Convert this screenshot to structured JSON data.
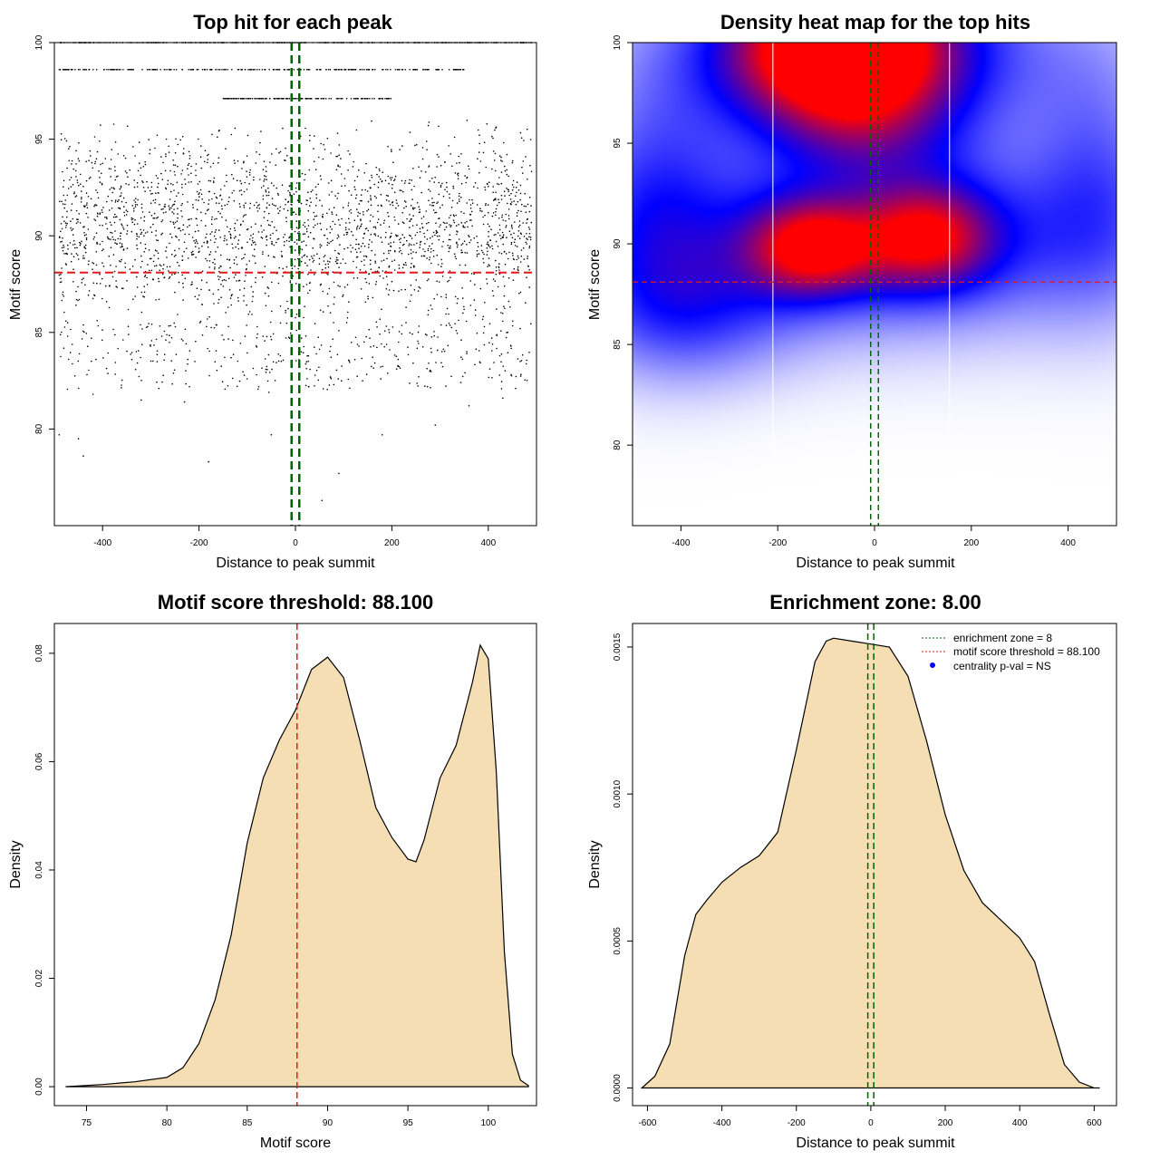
{
  "chart_data": [
    {
      "id": "scatter",
      "type": "scatter",
      "title": "Top hit for each peak",
      "xlabel": "Distance to peak summit",
      "ylabel": "Motif score",
      "xlim": [
        -500,
        500
      ],
      "ylim": [
        75,
        100
      ],
      "xticks": [
        "-400",
        "-200",
        "0",
        "200",
        "400"
      ],
      "xtick_values": [
        -400,
        -200,
        0,
        200,
        400
      ],
      "yticks": [
        "80",
        "85",
        "90",
        "95",
        "100"
      ],
      "ytick_values": [
        80,
        85,
        90,
        95,
        100
      ],
      "hline": 88.1,
      "vlines": [
        -8,
        8
      ],
      "discrete_rows": [
        {
          "y": 100,
          "x_range": [
            -490,
            490
          ]
        },
        {
          "y": 98.6,
          "x_range": [
            -490,
            350
          ]
        },
        {
          "y": 97.1,
          "x_range": [
            -150,
            200
          ]
        }
      ],
      "dense_band": [
        84,
        96
      ],
      "outliers": [
        {
          "x": -490,
          "y": 79.7
        },
        {
          "x": -450,
          "y": 79.5
        },
        {
          "x": -440,
          "y": 78.6
        },
        {
          "x": -420,
          "y": 81.8
        },
        {
          "x": -320,
          "y": 81.5
        },
        {
          "x": -230,
          "y": 81.4
        },
        {
          "x": -180,
          "y": 78.3
        },
        {
          "x": -55,
          "y": 81.9
        },
        {
          "x": -50,
          "y": 79.7
        },
        {
          "x": 90,
          "y": 77.7
        },
        {
          "x": 55,
          "y": 76.3
        },
        {
          "x": 180,
          "y": 79.7
        },
        {
          "x": 290,
          "y": 80.2
        },
        {
          "x": 360,
          "y": 81.2
        },
        {
          "x": 430,
          "y": 81.6
        }
      ],
      "colors": {
        "points": "#000000",
        "hline": "#e31a1c",
        "vlines": "#006400"
      }
    },
    {
      "id": "heatmap",
      "type": "heatmap",
      "title": "Density heat map for the top hits",
      "xlabel": "Distance to peak summit",
      "ylabel": "Motif score",
      "xlim": [
        -500,
        500
      ],
      "ylim": [
        76,
        100
      ],
      "xticks": [
        "-400",
        "-200",
        "0",
        "200",
        "400"
      ],
      "xtick_values": [
        -400,
        -200,
        0,
        200,
        400
      ],
      "yticks": [
        "80",
        "85",
        "90",
        "95",
        "100"
      ],
      "ytick_values": [
        80,
        85,
        90,
        95,
        100
      ],
      "hline": 88.1,
      "vlines": [
        -8,
        8
      ],
      "white_vlines": [
        -210,
        155
      ],
      "hotspots": [
        {
          "x": -70,
          "y": 99.7,
          "sx": 150,
          "sy": 2.6,
          "w": 1.5
        },
        {
          "x": -20,
          "y": 99.5,
          "sx": 300,
          "sy": 3.2,
          "w": 0.6
        },
        {
          "x": -130,
          "y": 89.8,
          "sx": 90,
          "sy": 1.6,
          "w": 0.95
        },
        {
          "x": 110,
          "y": 90.3,
          "sx": 95,
          "sy": 1.8,
          "w": 0.85
        },
        {
          "x": 0,
          "y": 90.2,
          "sx": 400,
          "sy": 3.3,
          "w": 0.62
        },
        {
          "x": -460,
          "y": 92.5,
          "sx": 110,
          "sy": 4.5,
          "w": 0.35
        },
        {
          "x": 460,
          "y": 93.5,
          "sx": 100,
          "sy": 4.5,
          "w": 0.3
        },
        {
          "x": -380,
          "y": 86.5,
          "sx": 150,
          "sy": 2.5,
          "w": 0.35
        },
        {
          "x": 0,
          "y": 95.5,
          "sx": 130,
          "sy": 2.0,
          "w": 0.3
        }
      ],
      "colors": {
        "low": "#ffffff",
        "mid": "#0000ff",
        "high": "#ff0000",
        "hline": "#e31a1c",
        "vlines": "#006400"
      }
    },
    {
      "id": "score-density",
      "type": "area",
      "title": "Motif score threshold: 88.100",
      "xlabel": "Motif score",
      "ylabel": "Density",
      "xlim": [
        73,
        103
      ],
      "ylim": [
        -0.0035,
        0.0855
      ],
      "xticks": [
        "75",
        "80",
        "85",
        "90",
        "95",
        "100"
      ],
      "xtick_values": [
        75,
        80,
        85,
        90,
        95,
        100
      ],
      "yticks": [
        "0.00",
        "0.02",
        "0.04",
        "0.06",
        "0.08"
      ],
      "ytick_values": [
        0,
        0.02,
        0.04,
        0.06,
        0.08
      ],
      "x": [
        73.7,
        76,
        78,
        80,
        81,
        82,
        83,
        84,
        85,
        86,
        87,
        88,
        89,
        90,
        91,
        92,
        93,
        94,
        95,
        95.5,
        96,
        97,
        98,
        99,
        99.5,
        100,
        100.5,
        101,
        101.5,
        102,
        102.5
      ],
      "y": [
        0,
        0.0004,
        0.0009,
        0.0017,
        0.0035,
        0.008,
        0.016,
        0.028,
        0.045,
        0.057,
        0.064,
        0.0695,
        0.077,
        0.0793,
        0.0755,
        0.064,
        0.0515,
        0.046,
        0.042,
        0.0415,
        0.0455,
        0.057,
        0.063,
        0.0745,
        0.0815,
        0.079,
        0.058,
        0.025,
        0.006,
        0.0012,
        0.0002
      ],
      "vline": 88.1,
      "colors": {
        "fill": "#f5deb3",
        "line": "#000000",
        "vline": "#e31a1c"
      }
    },
    {
      "id": "distance-density",
      "type": "area",
      "title": "Enrichment zone: 8.00",
      "xlabel": "Distance to peak summit",
      "ylabel": "Density",
      "xlim": [
        -640,
        660
      ],
      "ylim": [
        -6e-05,
        0.00158
      ],
      "xticks": [
        "-600",
        "-400",
        "-200",
        "0",
        "200",
        "400",
        "600"
      ],
      "xtick_values": [
        -600,
        -400,
        -200,
        0,
        200,
        400,
        600
      ],
      "yticks": [
        "0.0000",
        "0.0005",
        "0.0010",
        "0.0015"
      ],
      "ytick_values": [
        0,
        0.0005,
        0.001,
        0.0015
      ],
      "x": [
        -615,
        -580,
        -540,
        -500,
        -470,
        -440,
        -400,
        -350,
        -300,
        -250,
        -200,
        -150,
        -120,
        -100,
        -50,
        0,
        50,
        100,
        150,
        200,
        250,
        300,
        350,
        400,
        440,
        480,
        520,
        560,
        600,
        615
      ],
      "y": [
        0,
        4e-05,
        0.00015,
        0.00045,
        0.00059,
        0.00064,
        0.0007,
        0.00075,
        0.00079,
        0.00087,
        0.00115,
        0.00145,
        0.00152,
        0.00153,
        0.00152,
        0.00151,
        0.0015,
        0.0014,
        0.00118,
        0.00093,
        0.00074,
        0.00063,
        0.00057,
        0.00051,
        0.00043,
        0.00025,
        8e-05,
        2e-05,
        0,
        0
      ],
      "vlines": [
        -8,
        8
      ],
      "legend": {
        "position": "top-right",
        "entries": [
          {
            "label": "enrichment zone = 8",
            "color": "#006400",
            "style": "dotted-line"
          },
          {
            "label": "motif score threshold = 88.100",
            "color": "#e31a1c",
            "style": "dotted-line"
          },
          {
            "label": "centrality p-val = NS",
            "color": "#0000ff",
            "style": "point"
          }
        ]
      },
      "colors": {
        "fill": "#f5deb3",
        "line": "#000000",
        "vlines": "#006400"
      }
    }
  ]
}
